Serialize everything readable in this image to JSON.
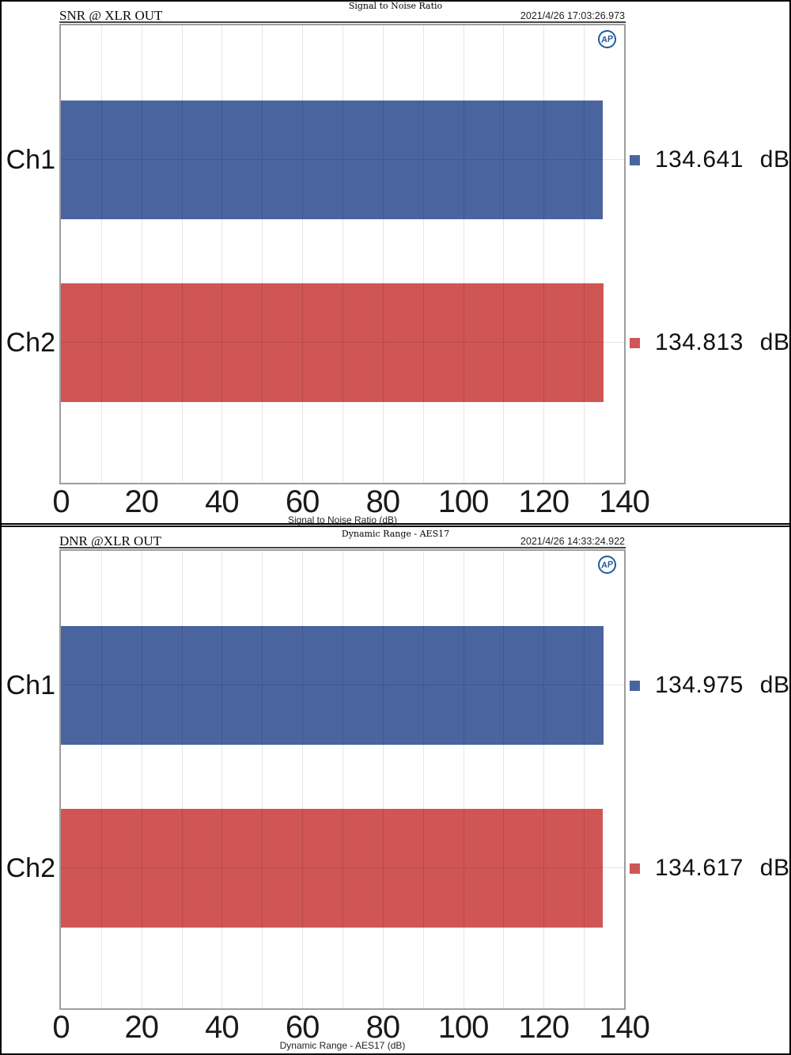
{
  "page": {
    "background": "#ffffff",
    "border_color": "#000000"
  },
  "chart_data": [
    {
      "type": "bar",
      "orientation": "horizontal",
      "title": "Signal to Noise Ratio",
      "panel_header": "SNR @ XLR OUT",
      "timestamp": "2021/4/26 17:03:26.973",
      "logo_text": "AP",
      "logo_color": "#1F5C9E",
      "categories": [
        "Ch1",
        "Ch2"
      ],
      "series": [
        {
          "name": "Ch1",
          "value": 134.641,
          "display": "134.641 dB",
          "color": "#4A64A0"
        },
        {
          "name": "Ch2",
          "value": 134.813,
          "display": "134.813 dB",
          "color": "#D05555"
        }
      ],
      "xlabel": "Signal to Noise Ratio (dB)",
      "xlim": [
        0,
        140
      ],
      "xticks": [
        0,
        20,
        40,
        60,
        80,
        100,
        120,
        140
      ],
      "grid": true,
      "legend_position": "right",
      "unit": "dB"
    },
    {
      "type": "bar",
      "orientation": "horizontal",
      "title": "Dynamic Range - AES17",
      "panel_header": "DNR @XLR OUT",
      "timestamp": "2021/4/26 14:33:24.922",
      "logo_text": "AP",
      "logo_color": "#1F5C9E",
      "categories": [
        "Ch1",
        "Ch2"
      ],
      "series": [
        {
          "name": "Ch1",
          "value": 134.975,
          "display": "134.975 dB",
          "color": "#4A64A0"
        },
        {
          "name": "Ch2",
          "value": 134.617,
          "display": "134.617 dB",
          "color": "#D05555"
        }
      ],
      "xlabel": "Dynamic Range - AES17 (dB)",
      "xlim": [
        0,
        140
      ],
      "xticks": [
        0,
        20,
        40,
        60,
        80,
        100,
        120,
        140
      ],
      "grid": true,
      "legend_position": "right",
      "unit": "dB"
    }
  ]
}
